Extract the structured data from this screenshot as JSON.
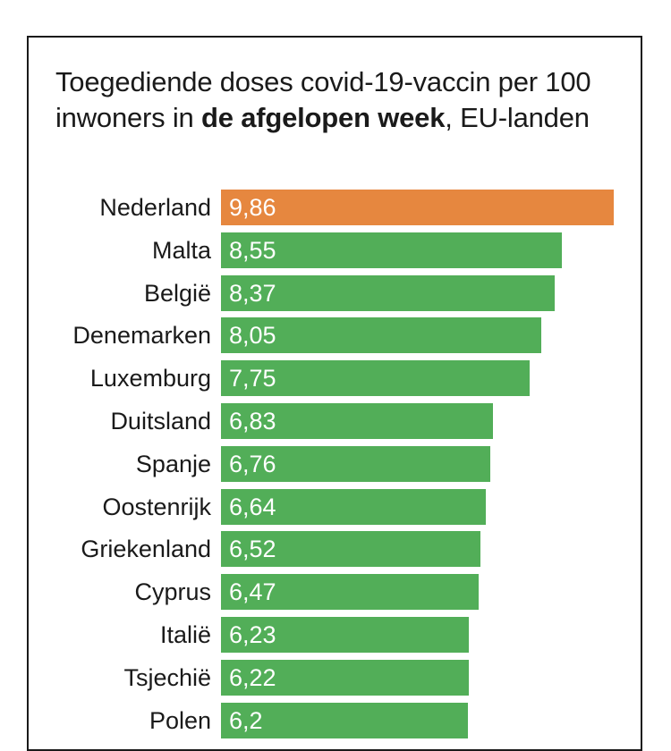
{
  "chart_data": {
    "type": "bar",
    "orientation": "horizontal",
    "title_parts": {
      "before": "Toegediende doses covid-19-vaccin per 100 inwoners in ",
      "bold": "de afgelopen week",
      "after": ", EU-landen"
    },
    "categories": [
      "Nederland",
      "Malta",
      "België",
      "Denemarken",
      "Luxemburg",
      "Duitsland",
      "Spanje",
      "Oostenrijk",
      "Griekenland",
      "Cyprus",
      "Italië",
      "Tsjechië",
      "Polen"
    ],
    "values": [
      9.86,
      8.55,
      8.37,
      8.05,
      7.75,
      6.83,
      6.76,
      6.64,
      6.52,
      6.47,
      6.23,
      6.22,
      6.2
    ],
    "value_labels": [
      "9,86",
      "8,55",
      "8,37",
      "8,05",
      "7,75",
      "6,83",
      "6,76",
      "6,64",
      "6,52",
      "6,47",
      "6,23",
      "6,22",
      "6,2"
    ],
    "highlight": "Nederland",
    "colors": {
      "highlight": "#e6873f",
      "default": "#52ae58"
    },
    "xlim": [
      0,
      9.86
    ]
  }
}
